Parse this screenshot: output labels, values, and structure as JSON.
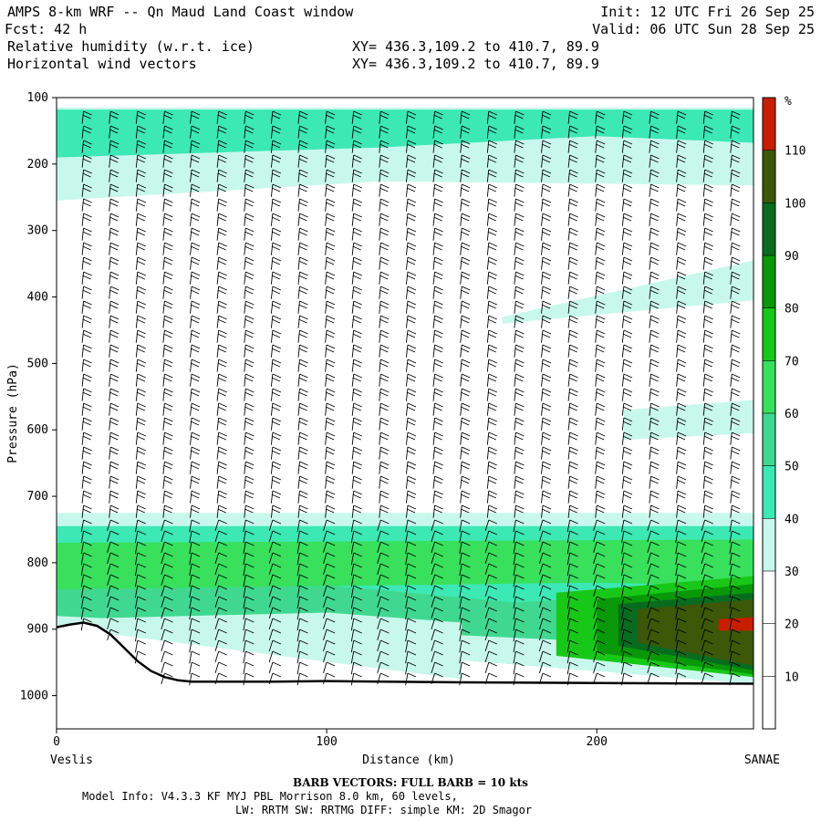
{
  "header": {
    "line1_left": "AMPS 8-km WRF -- Qn Maud Land Coast window",
    "line1_right": "Init: 12 UTC Fri 26 Sep 25",
    "line2_left": "Fcst:    42 h",
    "line2_right": "Valid: 06 UTC Sun 28 Sep 25",
    "line3_left": "Relative humidity (w.r.t. ice)",
    "line3_right": "XY= 436.3,109.2 to 410.7, 89.9",
    "line4_left": "Horizontal wind vectors",
    "line4_right": "XY= 436.3,109.2 to 410.7, 89.9"
  },
  "footer": {
    "line1": "BARB VECTORS:  FULL BARB = 10 kts",
    "line2": "Model Info: V4.3.3   KF     MYJ PBL  Morrison            8.0 km,  60 levels,",
    "line3": "LW: RRTM SW: RRTMG   DIFF: simple KM: 2D Smagor"
  },
  "chart_data": {
    "type": "cross-section",
    "ylabel": "Pressure (hPa)",
    "xlabel": "Distance (km)",
    "x_start_label": "Veslis",
    "x_end_label": "SANAE",
    "xlim": [
      0,
      258
    ],
    "ylim": [
      1050,
      100
    ],
    "x_ticks": [
      0,
      100,
      200
    ],
    "y_ticks": [
      100,
      200,
      300,
      400,
      500,
      600,
      700,
      800,
      900,
      1000
    ],
    "colorbar": {
      "unit": "%",
      "levels": [
        10,
        20,
        30,
        40,
        50,
        60,
        70,
        80,
        90,
        100,
        110
      ],
      "colors": [
        "#ffffff",
        "#ffffff",
        "#ffffff",
        "#c8f8ec",
        "#3ce8b4",
        "#40d890",
        "#38e05c",
        "#18c818",
        "#089808",
        "#086c20",
        "#3c5808",
        "#c81e00"
      ]
    },
    "terrain": {
      "x": [
        0,
        5,
        10,
        15,
        20,
        25,
        30,
        35,
        40,
        45,
        50,
        60,
        80,
        100,
        150,
        200,
        258
      ],
      "p": [
        897,
        893,
        890,
        895,
        908,
        928,
        948,
        963,
        972,
        977,
        979,
        979,
        979,
        978,
        980,
        981,
        982
      ]
    },
    "rh_regions": [
      {
        "level": 30,
        "polygon": [
          [
            0,
            115
          ],
          [
            258,
            115
          ],
          [
            258,
            232
          ],
          [
            120,
            226
          ],
          [
            0,
            255
          ]
        ]
      },
      {
        "level": 40,
        "polygon": [
          [
            0,
            118
          ],
          [
            258,
            118
          ],
          [
            258,
            168
          ],
          [
            200,
            158
          ],
          [
            120,
            175
          ],
          [
            0,
            190
          ]
        ]
      },
      {
        "level": 30,
        "polygon": [
          [
            165,
            430
          ],
          [
            258,
            345
          ],
          [
            258,
            405
          ],
          [
            165,
            440
          ]
        ]
      },
      {
        "level": 30,
        "polygon": [
          [
            210,
            570
          ],
          [
            258,
            555
          ],
          [
            258,
            605
          ],
          [
            210,
            615
          ]
        ]
      },
      {
        "level": 30,
        "polygon": [
          [
            0,
            725
          ],
          [
            258,
            725
          ],
          [
            258,
            982
          ],
          [
            0,
            897
          ]
        ]
      },
      {
        "level": 40,
        "polygon": [
          [
            0,
            745
          ],
          [
            258,
            745
          ],
          [
            258,
            982
          ],
          [
            0,
            897
          ]
        ]
      },
      {
        "level": 30,
        "polygon": [
          [
            0,
            840
          ],
          [
            60,
            860
          ],
          [
            120,
            880
          ],
          [
            180,
            870
          ],
          [
            258,
            860
          ],
          [
            258,
            982
          ],
          [
            0,
            897
          ]
        ]
      },
      {
        "level": 50,
        "polygon": [
          [
            0,
            820
          ],
          [
            90,
            830
          ],
          [
            170,
            860
          ],
          [
            210,
            850
          ],
          [
            258,
            840
          ],
          [
            258,
            930
          ],
          [
            0,
            880
          ]
        ]
      },
      {
        "level": 30,
        "polygon": [
          [
            0,
            885
          ],
          [
            100,
            875
          ],
          [
            150,
            890
          ],
          [
            150,
            975
          ],
          [
            0,
            897
          ]
        ]
      },
      {
        "level": 60,
        "polygon": [
          [
            0,
            770
          ],
          [
            258,
            765
          ],
          [
            258,
            835
          ],
          [
            200,
            830
          ],
          [
            0,
            840
          ]
        ]
      },
      {
        "level": 70,
        "polygon": [
          [
            185,
            845
          ],
          [
            258,
            820
          ],
          [
            258,
            972
          ],
          [
            185,
            940
          ]
        ]
      },
      {
        "level": 80,
        "polygon": [
          [
            200,
            855
          ],
          [
            258,
            832
          ],
          [
            258,
            968
          ],
          [
            200,
            935
          ]
        ]
      },
      {
        "level": 90,
        "polygon": [
          [
            208,
            862
          ],
          [
            258,
            845
          ],
          [
            258,
            962
          ],
          [
            208,
            925
          ]
        ]
      },
      {
        "level": 100,
        "polygon": [
          [
            215,
            870
          ],
          [
            258,
            855
          ],
          [
            258,
            955
          ],
          [
            215,
            920
          ]
        ]
      },
      {
        "level": 110,
        "polygon": [
          [
            245,
            885
          ],
          [
            258,
            882
          ],
          [
            258,
            902
          ],
          [
            245,
            902
          ]
        ]
      }
    ],
    "wind_columns_km": [
      10,
      20,
      30,
      40,
      50,
      60,
      70,
      80,
      90,
      100,
      110,
      120,
      130,
      140,
      150,
      160,
      170,
      180,
      190,
      200,
      210,
      220,
      230,
      240,
      250
    ]
  }
}
